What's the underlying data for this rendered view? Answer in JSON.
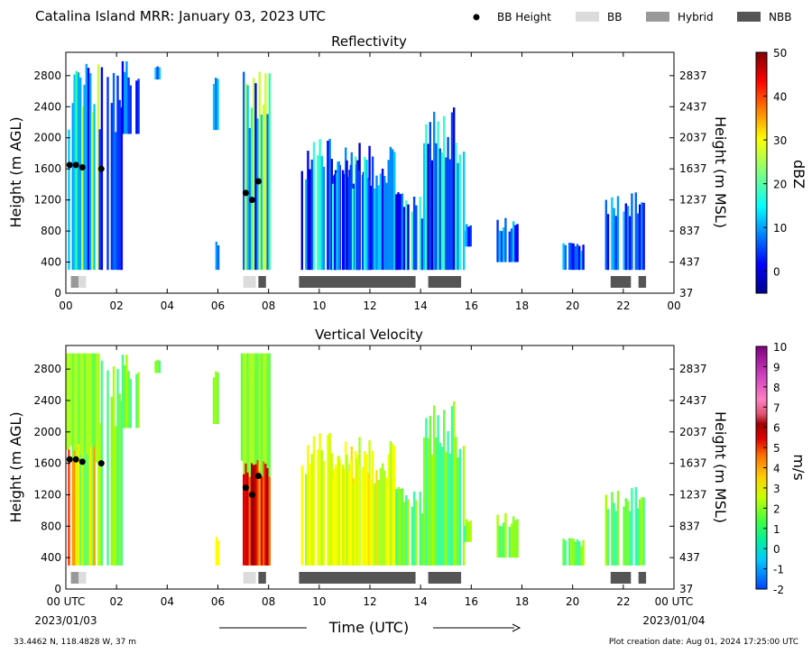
{
  "header": {
    "title": "Catalina Island MRR:  January 03, 2023 UTC",
    "legend": [
      {
        "label": "BB Height",
        "kind": "dot",
        "color": "#000000"
      },
      {
        "label": "BB",
        "kind": "box",
        "color": "#dcdcdc"
      },
      {
        "label": "Hybrid",
        "kind": "box",
        "color": "#999999"
      },
      {
        "label": "NBB",
        "kind": "box",
        "color": "#555555"
      }
    ]
  },
  "x_axis": {
    "label": "Time (UTC)",
    "ticks_top": [
      "00",
      "02",
      "04",
      "06",
      "08",
      "10",
      "12",
      "14",
      "16",
      "18",
      "20",
      "22",
      "00"
    ],
    "ticks_bottom": [
      "00 UTC",
      "02",
      "04",
      "06",
      "08",
      "10",
      "12",
      "14",
      "16",
      "18",
      "20",
      "22",
      "00 UTC"
    ],
    "start_date": "2023/01/03",
    "end_date": "2023/01/04"
  },
  "footer": {
    "location": "33.4462 N, 118.4828 W, 37 m",
    "created": "Plot creation date: Aug 01, 2024 17:25:00 UTC"
  },
  "chart_data": [
    {
      "type": "heatmap",
      "title": "Reflectivity",
      "xlabel": "Time (UTC)",
      "ylabel": "Height (m AGL)",
      "ylabel_right": "Height (m MSL)",
      "xlim": [
        0,
        24
      ],
      "ylim": [
        0,
        3100
      ],
      "yticks_left": [
        "0",
        "400",
        "800",
        "1200",
        "1600",
        "2000",
        "2400",
        "2800"
      ],
      "yticks_right": [
        "37",
        "437",
        "837",
        "1237",
        "1637",
        "2037",
        "2437",
        "2837"
      ],
      "colorbar": {
        "label": "dBZ",
        "min": -5,
        "max": 50,
        "ticks": [
          "0",
          "10",
          "20",
          "30",
          "40",
          "50"
        ]
      },
      "bb_height": [
        {
          "x": 0.15,
          "y": 1650
        },
        {
          "x": 0.4,
          "y": 1650
        },
        {
          "x": 0.65,
          "y": 1620
        },
        {
          "x": 1.4,
          "y": 1600
        },
        {
          "x": 7.1,
          "y": 1290
        },
        {
          "x": 7.35,
          "y": 1200
        },
        {
          "x": 7.6,
          "y": 1440
        }
      ],
      "classification": [
        {
          "type": "Hybrid",
          "start": 0.2,
          "end": 0.5
        },
        {
          "type": "BB",
          "start": 0.5,
          "end": 0.8
        },
        {
          "type": "BB",
          "start": 7.0,
          "end": 7.5
        },
        {
          "type": "NBB",
          "start": 7.6,
          "end": 7.9
        },
        {
          "type": "NBB",
          "start": 9.2,
          "end": 13.8
        },
        {
          "type": "NBB",
          "start": 14.3,
          "end": 15.6
        },
        {
          "type": "NBB",
          "start": 21.5,
          "end": 22.3
        },
        {
          "type": "NBB",
          "start": 22.6,
          "end": 22.9
        }
      ]
    },
    {
      "type": "heatmap",
      "title": "Vertical Velocity",
      "xlabel": "Time (UTC)",
      "ylabel": "Height (m AGL)",
      "ylabel_right": "Height (m MSL)",
      "xlim": [
        0,
        24
      ],
      "ylim": [
        0,
        3100
      ],
      "yticks_left": [
        "0",
        "400",
        "800",
        "1200",
        "1600",
        "2000",
        "2400",
        "2800"
      ],
      "yticks_right": [
        "37",
        "437",
        "837",
        "1237",
        "1637",
        "2037",
        "2437",
        "2837"
      ],
      "colorbar": {
        "label": "m/s",
        "min": -2,
        "max": 10,
        "ticks": [
          "-2",
          "-1",
          "0",
          "1",
          "2",
          "3",
          "4",
          "5",
          "6",
          "7",
          "8",
          "9",
          "10"
        ]
      },
      "bb_height": [
        {
          "x": 0.15,
          "y": 1650
        },
        {
          "x": 0.4,
          "y": 1650
        },
        {
          "x": 0.65,
          "y": 1620
        },
        {
          "x": 1.4,
          "y": 1600
        },
        {
          "x": 7.1,
          "y": 1290
        },
        {
          "x": 7.35,
          "y": 1200
        },
        {
          "x": 7.6,
          "y": 1440
        }
      ],
      "classification": [
        {
          "type": "Hybrid",
          "start": 0.2,
          "end": 0.5
        },
        {
          "type": "BB",
          "start": 0.5,
          "end": 0.8
        },
        {
          "type": "BB",
          "start": 7.0,
          "end": 7.5
        },
        {
          "type": "NBB",
          "start": 7.6,
          "end": 7.9
        },
        {
          "type": "NBB",
          "start": 9.2,
          "end": 13.8
        },
        {
          "type": "NBB",
          "start": 14.3,
          "end": 15.6
        },
        {
          "type": "NBB",
          "start": 21.5,
          "end": 22.3
        },
        {
          "type": "NBB",
          "start": 22.6,
          "end": 22.9
        }
      ]
    }
  ]
}
